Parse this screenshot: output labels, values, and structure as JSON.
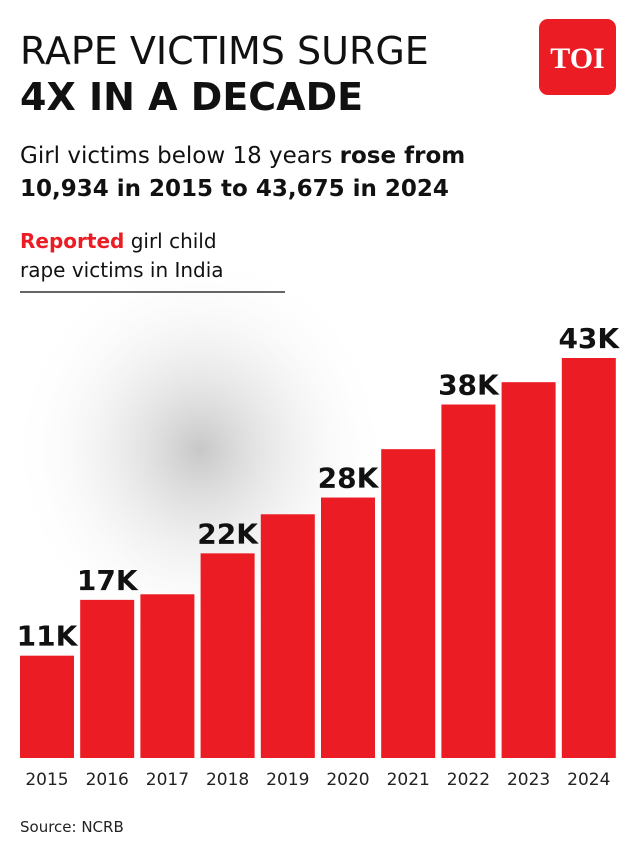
{
  "header": {
    "title_line1": "RAPE VICTIMS SURGE",
    "title_line2": "4X IN A DECADE",
    "logo": "TOI",
    "subtitle_regular": "Girl victims below 18 years",
    "subtitle_bold": [
      "rose from",
      "10,934 in 2015 to 43,675 in 2024"
    ]
  },
  "chart_data": {
    "type": "bar",
    "label_highlight": "Reported",
    "label_rest_line1": "girl child",
    "label_line2": "rape victims in India",
    "categories": [
      "2015",
      "2016",
      "2017",
      "2018",
      "2019",
      "2020",
      "2021",
      "2022",
      "2023",
      "2024"
    ],
    "values": [
      11,
      17,
      17.6,
      22,
      26.2,
      28,
      33.2,
      38,
      40.4,
      43
    ],
    "value_labels": [
      "11K",
      "17K",
      null,
      "22K",
      null,
      "28K",
      null,
      "38K",
      null,
      "43K"
    ],
    "color": "#ec1c24"
  },
  "footer": {
    "source": "Source: NCRB"
  }
}
